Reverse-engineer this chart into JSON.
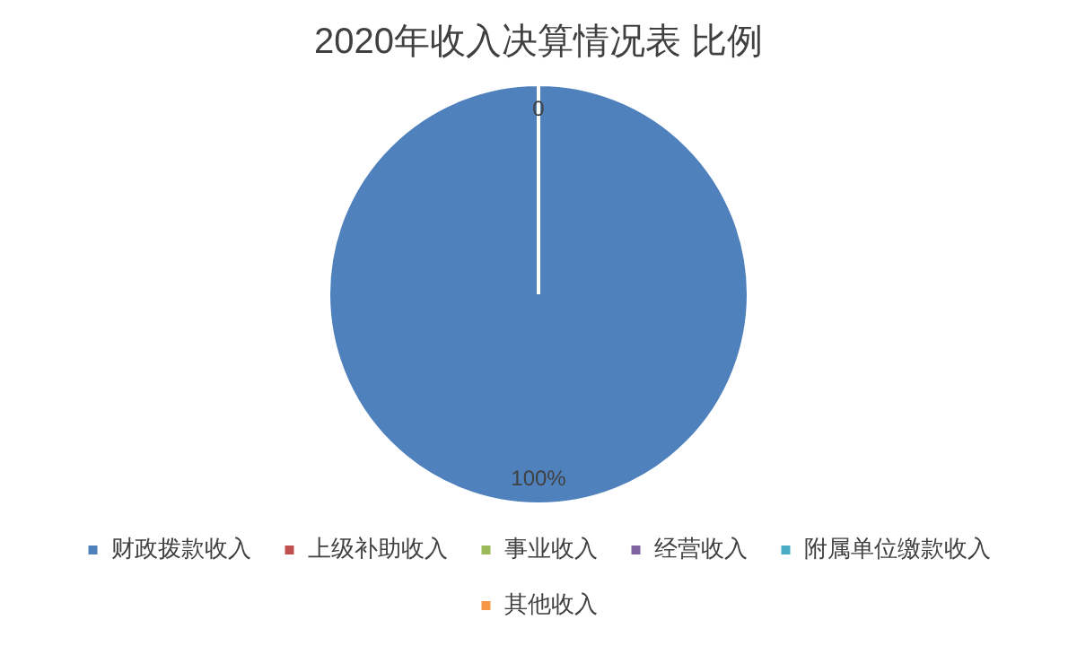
{
  "chart_data": {
    "type": "pie",
    "title": "2020年收入决算情况表 比例",
    "categories": [
      "财政拨款收入",
      "上级补助收入",
      "事业收入",
      "经营收入",
      "附属单位缴款收入",
      "其他收入"
    ],
    "values": [
      100,
      0,
      0,
      0,
      0,
      0
    ],
    "colors": [
      "#4f81bd",
      "#c0504d",
      "#9bbb59",
      "#8064a2",
      "#4bacc6",
      "#f79646"
    ],
    "value_labels": [
      "100%",
      "0",
      null,
      null,
      null,
      null
    ],
    "legend": "bottom"
  }
}
